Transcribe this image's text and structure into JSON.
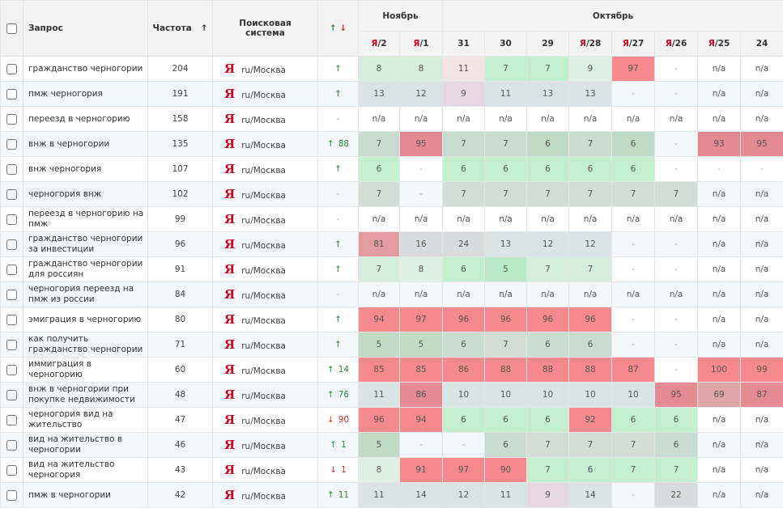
{
  "header": {
    "query": "Запрос",
    "freq": "Частота",
    "sort_icon": "↑",
    "engine": "Поисковая система",
    "trend_up": "↑",
    "trend_down": "↓",
    "months": [
      {
        "label": "Ноябрь",
        "span": 2
      },
      {
        "label": "Октябрь",
        "span": 8
      }
    ],
    "days": [
      {
        "ya": "Я",
        "d": "/2"
      },
      {
        "ya": "Я",
        "d": "/1"
      },
      {
        "ya": "",
        "d": "31"
      },
      {
        "ya": "",
        "d": "30"
      },
      {
        "ya": "",
        "d": "29"
      },
      {
        "ya": "Я",
        "d": "/28"
      },
      {
        "ya": "Я",
        "d": "/27"
      },
      {
        "ya": "Я",
        "d": "/26"
      },
      {
        "ya": "Я",
        "d": "/25"
      },
      {
        "ya": "",
        "d": "24"
      }
    ]
  },
  "palette": {
    "g1": "#d3eeda",
    "gl": "#e0efe3",
    "g2": "#c3efcf",
    "g3": "#b8eac6",
    "gg": "#c8dccf",
    "gd": "#bfdbc6",
    "gy": "#d1ddd5",
    "bg": "#dae4e6",
    "pk": "#f2e3e5",
    "mv": "#e6d8e2",
    "rd": "#f48a8e",
    "dr": "#e38b90",
    "dr2": "#e29b9e",
    "dr3": "#e0a5a8",
    "gr": "#dadbdc"
  },
  "engine_logo": "Я",
  "rows": [
    {
      "q": "гражданство черногории",
      "f": "204",
      "e": "ru/Москва",
      "t": {
        "dir": "up",
        "n": ""
      },
      "cells": [
        [
          "8",
          "g1"
        ],
        [
          "8",
          "g1"
        ],
        [
          "11",
          "pk"
        ],
        [
          "7",
          "g2"
        ],
        [
          "7",
          "g2"
        ],
        [
          "9",
          "gl"
        ],
        [
          "97",
          "rd"
        ],
        [
          "-",
          ""
        ],
        [
          "n/a",
          ""
        ],
        [
          "n/a",
          ""
        ]
      ]
    },
    {
      "q": "пмж черногория",
      "f": "191",
      "e": "ru/Москва",
      "t": {
        "dir": "up",
        "n": ""
      },
      "cells": [
        [
          "13",
          "bg"
        ],
        [
          "12",
          "bg"
        ],
        [
          "9",
          "mv"
        ],
        [
          "11",
          "bg"
        ],
        [
          "13",
          "bg"
        ],
        [
          "13",
          "bg"
        ],
        [
          "-",
          ""
        ],
        [
          "-",
          ""
        ],
        [
          "n/a",
          ""
        ],
        [
          "n/a",
          ""
        ]
      ]
    },
    {
      "q": "переезд в черногорию",
      "f": "158",
      "e": "ru/Москва",
      "t": {
        "dir": "none",
        "n": "-"
      },
      "cells": [
        [
          "n/a",
          ""
        ],
        [
          "n/a",
          ""
        ],
        [
          "n/a",
          ""
        ],
        [
          "n/a",
          ""
        ],
        [
          "n/a",
          ""
        ],
        [
          "n/a",
          ""
        ],
        [
          "n/a",
          ""
        ],
        [
          "n/a",
          ""
        ],
        [
          "n/a",
          ""
        ],
        [
          "n/a",
          ""
        ]
      ]
    },
    {
      "q": "внж в черногории",
      "f": "135",
      "e": "ru/Москва",
      "t": {
        "dir": "up",
        "n": "88"
      },
      "cells": [
        [
          "7",
          "gg"
        ],
        [
          "95",
          "dr"
        ],
        [
          "7",
          "gg"
        ],
        [
          "7",
          "gg"
        ],
        [
          "6",
          "gd"
        ],
        [
          "7",
          "gg"
        ],
        [
          "6",
          "gd"
        ],
        [
          "-",
          ""
        ],
        [
          "93",
          "dr"
        ],
        [
          "95",
          "dr"
        ]
      ]
    },
    {
      "q": "внж черногория",
      "f": "107",
      "e": "ru/Москва",
      "t": {
        "dir": "up",
        "n": ""
      },
      "cells": [
        [
          "6",
          "g2"
        ],
        [
          "-",
          ""
        ],
        [
          "6",
          "g2"
        ],
        [
          "6",
          "g2"
        ],
        [
          "6",
          "g2"
        ],
        [
          "6",
          "g2"
        ],
        [
          "6",
          "g2"
        ],
        [
          "-",
          ""
        ],
        [
          "-",
          ""
        ],
        [
          "-",
          ""
        ]
      ]
    },
    {
      "q": "черногория внж",
      "f": "102",
      "e": "ru/Москва",
      "t": {
        "dir": "none",
        "n": "-"
      },
      "cells": [
        [
          "7",
          "gy"
        ],
        [
          "-",
          ""
        ],
        [
          "7",
          "gy"
        ],
        [
          "7",
          "gy"
        ],
        [
          "7",
          "gy"
        ],
        [
          "7",
          "gy"
        ],
        [
          "7",
          "gy"
        ],
        [
          "7",
          "gy"
        ],
        [
          "n/a",
          ""
        ],
        [
          "n/a",
          ""
        ]
      ]
    },
    {
      "q": "переезд в черногорию на пмж",
      "f": "99",
      "e": "ru/Москва",
      "t": {
        "dir": "none",
        "n": "-"
      },
      "cells": [
        [
          "n/a",
          ""
        ],
        [
          "n/a",
          ""
        ],
        [
          "n/a",
          ""
        ],
        [
          "n/a",
          ""
        ],
        [
          "n/a",
          ""
        ],
        [
          "n/a",
          ""
        ],
        [
          "n/a",
          ""
        ],
        [
          "n/a",
          ""
        ],
        [
          "n/a",
          ""
        ],
        [
          "n/a",
          ""
        ]
      ]
    },
    {
      "q": "гражданство черногории за инвестиции",
      "f": "96",
      "e": "ru/Москва",
      "t": {
        "dir": "up",
        "n": ""
      },
      "cells": [
        [
          "81",
          "dr2"
        ],
        [
          "16",
          "gr"
        ],
        [
          "24",
          "gr"
        ],
        [
          "13",
          "bg"
        ],
        [
          "12",
          "bg"
        ],
        [
          "12",
          "bg"
        ],
        [
          "-",
          ""
        ],
        [
          "-",
          ""
        ],
        [
          "n/a",
          ""
        ],
        [
          "n/a",
          ""
        ]
      ]
    },
    {
      "q": "гражданство черногории для россиян",
      "f": "91",
      "e": "ru/Москва",
      "t": {
        "dir": "up",
        "n": ""
      },
      "cells": [
        [
          "7",
          "g1"
        ],
        [
          "8",
          "gl"
        ],
        [
          "6",
          "g2"
        ],
        [
          "5",
          "g3"
        ],
        [
          "7",
          "g1"
        ],
        [
          "7",
          "g1"
        ],
        [
          "-",
          ""
        ],
        [
          "-",
          ""
        ],
        [
          "n/a",
          ""
        ],
        [
          "n/a",
          ""
        ]
      ]
    },
    {
      "q": "черногория переезд на пмж из россии",
      "f": "84",
      "e": "ru/Москва",
      "t": {
        "dir": "none",
        "n": "-"
      },
      "cells": [
        [
          "n/a",
          ""
        ],
        [
          "n/a",
          ""
        ],
        [
          "n/a",
          ""
        ],
        [
          "n/a",
          ""
        ],
        [
          "n/a",
          ""
        ],
        [
          "n/a",
          ""
        ],
        [
          "n/a",
          ""
        ],
        [
          "n/a",
          ""
        ],
        [
          "n/a",
          ""
        ],
        [
          "n/a",
          ""
        ]
      ]
    },
    {
      "q": "эмиграция в черногорию",
      "f": "80",
      "e": "ru/Москва",
      "t": {
        "dir": "up",
        "n": ""
      },
      "cells": [
        [
          "94",
          "rd"
        ],
        [
          "97",
          "rd"
        ],
        [
          "96",
          "rd"
        ],
        [
          "96",
          "rd"
        ],
        [
          "96",
          "rd"
        ],
        [
          "96",
          "rd"
        ],
        [
          "-",
          ""
        ],
        [
          "-",
          ""
        ],
        [
          "n/a",
          ""
        ],
        [
          "n/a",
          ""
        ]
      ]
    },
    {
      "q": "как получить гражданство черногории",
      "f": "71",
      "e": "ru/Москва",
      "t": {
        "dir": "up",
        "n": ""
      },
      "cells": [
        [
          "5",
          "gd"
        ],
        [
          "5",
          "gd"
        ],
        [
          "6",
          "gg"
        ],
        [
          "7",
          "gy"
        ],
        [
          "6",
          "gg"
        ],
        [
          "6",
          "gg"
        ],
        [
          "-",
          ""
        ],
        [
          "-",
          ""
        ],
        [
          "n/a",
          ""
        ],
        [
          "n/a",
          ""
        ]
      ]
    },
    {
      "q": "иммиграция в черногорию",
      "f": "60",
      "e": "ru/Москва",
      "t": {
        "dir": "up",
        "n": "14"
      },
      "cells": [
        [
          "85",
          "rd"
        ],
        [
          "85",
          "rd"
        ],
        [
          "86",
          "rd"
        ],
        [
          "88",
          "rd"
        ],
        [
          "88",
          "rd"
        ],
        [
          "88",
          "rd"
        ],
        [
          "87",
          "rd"
        ],
        [
          "-",
          ""
        ],
        [
          "100",
          "rd"
        ],
        [
          "99",
          "rd"
        ]
      ]
    },
    {
      "q": "внж в черногории при покупке недвижимости",
      "f": "48",
      "e": "ru/Москва",
      "t": {
        "dir": "up",
        "n": "76"
      },
      "cells": [
        [
          "11",
          "bg"
        ],
        [
          "86",
          "dr"
        ],
        [
          "10",
          "bg"
        ],
        [
          "10",
          "bg"
        ],
        [
          "10",
          "bg"
        ],
        [
          "10",
          "bg"
        ],
        [
          "10",
          "bg"
        ],
        [
          "95",
          "dr"
        ],
        [
          "69",
          "dr3"
        ],
        [
          "87",
          "dr"
        ]
      ]
    },
    {
      "q": "черногория вид на жительство",
      "f": "47",
      "e": "ru/Москва",
      "t": {
        "dir": "down",
        "n": "90"
      },
      "cells": [
        [
          "96",
          "rd"
        ],
        [
          "94",
          "rd"
        ],
        [
          "6",
          "g2"
        ],
        [
          "6",
          "g2"
        ],
        [
          "6",
          "g2"
        ],
        [
          "92",
          "rd"
        ],
        [
          "6",
          "g2"
        ],
        [
          "6",
          "g2"
        ],
        [
          "n/a",
          ""
        ],
        [
          "n/a",
          ""
        ]
      ]
    },
    {
      "q": "вид на жительство в черногории",
      "f": "46",
      "e": "ru/Москва",
      "t": {
        "dir": "up",
        "n": "1"
      },
      "cells": [
        [
          "5",
          "gd"
        ],
        [
          "-",
          ""
        ],
        [
          "-",
          ""
        ],
        [
          "6",
          "gg"
        ],
        [
          "7",
          "gy"
        ],
        [
          "7",
          "gy"
        ],
        [
          "7",
          "gy"
        ],
        [
          "6",
          "gg"
        ],
        [
          "n/a",
          ""
        ],
        [
          "n/a",
          ""
        ]
      ]
    },
    {
      "q": "вид на жительство черногория",
      "f": "43",
      "e": "ru/Москва",
      "t": {
        "dir": "down",
        "n": "1"
      },
      "cells": [
        [
          "8",
          "gl"
        ],
        [
          "91",
          "rd"
        ],
        [
          "97",
          "rd"
        ],
        [
          "90",
          "rd"
        ],
        [
          "7",
          "g2"
        ],
        [
          "6",
          "g2"
        ],
        [
          "7",
          "g2"
        ],
        [
          "7",
          "g2"
        ],
        [
          "n/a",
          ""
        ],
        [
          "n/a",
          ""
        ]
      ]
    },
    {
      "q": "пмж в черногории",
      "f": "42",
      "e": "ru/Москва",
      "t": {
        "dir": "up",
        "n": "11"
      },
      "cells": [
        [
          "11",
          "bg"
        ],
        [
          "14",
          "bg"
        ],
        [
          "12",
          "bg"
        ],
        [
          "11",
          "bg"
        ],
        [
          "9",
          "mv"
        ],
        [
          "14",
          "bg"
        ],
        [
          "-",
          ""
        ],
        [
          "22",
          "gr"
        ],
        [
          "n/a",
          ""
        ],
        [
          "n/a",
          ""
        ]
      ]
    }
  ]
}
